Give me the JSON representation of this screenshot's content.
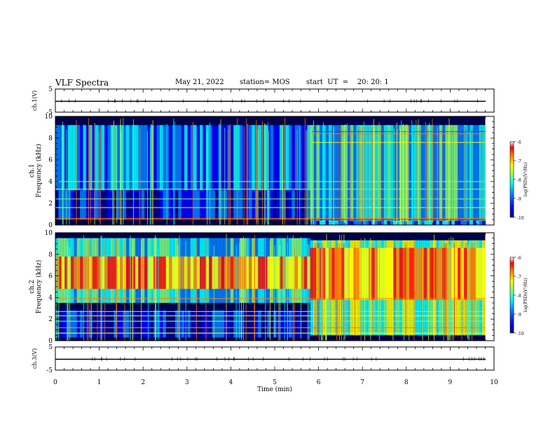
{
  "header": {
    "title": "VLF Spectra",
    "date": "May 21, 2022",
    "station": "station= MOS",
    "start": "start  UT  =    20: 20: 1"
  },
  "chart_data": [
    {
      "type": "line",
      "name": "ch1-waveform",
      "ylabel": "ch.1(V)",
      "ylim": [
        -5,
        5
      ],
      "yticks": [
        "5",
        "-5"
      ],
      "xlim": [
        0,
        10
      ]
    },
    {
      "type": "heatmap",
      "name": "ch1-spectrogram",
      "ylabel_line1": "ch.1",
      "ylabel_line2": "Frequency (kHz)",
      "ylim": [
        0,
        10
      ],
      "yticks": [
        "0",
        "2",
        "4",
        "6",
        "8",
        "10"
      ],
      "xlim": [
        0,
        10
      ],
      "colorbar": {
        "label": "log(PSD)(V²/Hz)",
        "range": [
          -10,
          -6
        ],
        "ticks": [
          "-6",
          "-7",
          "-8",
          "-9",
          "-10"
        ]
      },
      "regions": [
        {
          "t_start": 0,
          "t_end": 5.8,
          "description": "sferic broadband bursts, strong 0.3-4 kHz lines"
        },
        {
          "t_start": 5.8,
          "t_end": 9.8,
          "description": "dense broadband noise with red horizontal lines near 8.6 kHz and 0.5 kHz"
        }
      ]
    },
    {
      "type": "heatmap",
      "name": "ch2-spectrogram",
      "ylabel_line1": "ch.2",
      "ylabel_line2": "Frequency (kHz)",
      "ylim": [
        0,
        10
      ],
      "yticks": [
        "0",
        "2",
        "4",
        "6",
        "8",
        "10"
      ],
      "xlim": [
        0,
        10
      ],
      "colorbar": {
        "label": "log(PSD)(V²/Hz)",
        "range": [
          -10,
          -6
        ],
        "ticks": [
          "-6",
          "-7",
          "-8",
          "-9",
          "-10"
        ]
      }
    },
    {
      "type": "line",
      "name": "ch3-waveform",
      "ylabel": "ch.3(V)",
      "ylim": [
        -5,
        5
      ],
      "yticks": [
        "5",
        "-5"
      ],
      "xlim": [
        0,
        10
      ],
      "xlabel": "Time (min)",
      "xticks": [
        "0",
        "1",
        "2",
        "3",
        "4",
        "5",
        "6",
        "7",
        "8",
        "9",
        "10"
      ]
    }
  ],
  "colors": {
    "jet": [
      "#00008f",
      "#0000ff",
      "#0080ff",
      "#00ffff",
      "#80ff80",
      "#ffff00",
      "#ff8000",
      "#ff0000",
      "#800000"
    ],
    "background_dark": "#00004a"
  }
}
